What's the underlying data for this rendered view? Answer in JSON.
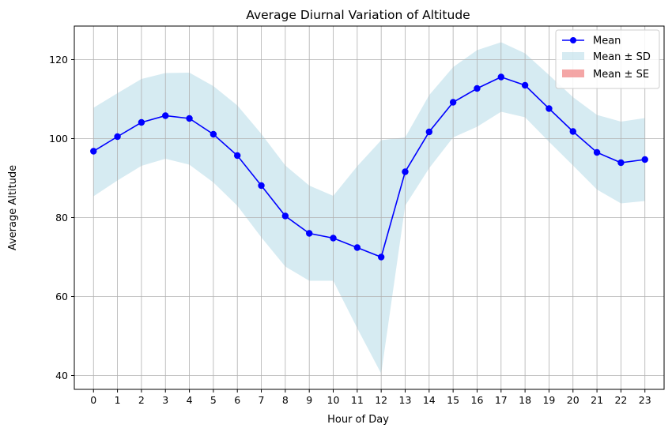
{
  "chart_data": {
    "type": "line",
    "title": "Average Diurnal Variation of Altitude",
    "xlabel": "Hour of Day",
    "ylabel": "Average Altitude",
    "x": [
      0,
      1,
      2,
      3,
      4,
      5,
      6,
      7,
      8,
      9,
      10,
      11,
      12,
      13,
      14,
      15,
      16,
      17,
      18,
      19,
      20,
      21,
      22,
      23
    ],
    "xticks": [
      "0",
      "1",
      "2",
      "3",
      "4",
      "5",
      "6",
      "7",
      "8",
      "9",
      "10",
      "11",
      "12",
      "13",
      "14",
      "15",
      "16",
      "17",
      "18",
      "19",
      "20",
      "21",
      "22",
      "23"
    ],
    "yticks": [
      "40",
      "60",
      "80",
      "100",
      "120"
    ],
    "xlim": [
      -0.8,
      23.8
    ],
    "ylim": [
      36.5,
      128.5
    ],
    "grid": true,
    "legend_position": "top-right",
    "series": [
      {
        "name": "Mean",
        "kind": "line-markers",
        "color": "#0000ff",
        "values": [
          96.8,
          100.5,
          104.1,
          105.8,
          105.1,
          101.1,
          95.7,
          88.1,
          80.4,
          76.0,
          74.8,
          72.4,
          70.0,
          91.6,
          101.7,
          109.2,
          112.7,
          115.6,
          113.5,
          107.6,
          101.8,
          96.5,
          93.9,
          94.7
        ]
      },
      {
        "name": "Mean ± SD",
        "kind": "band",
        "color": "#add8e6",
        "lower": [
          85.4,
          89.4,
          93.1,
          94.9,
          93.4,
          88.9,
          83.0,
          75.0,
          67.6,
          64.0,
          64.0,
          52.0,
          40.5,
          83.0,
          92.5,
          100.3,
          103.0,
          106.8,
          105.4,
          99.2,
          93.2,
          87.1,
          83.6,
          84.2
        ],
        "upper": [
          107.8,
          111.5,
          115.1,
          116.6,
          116.7,
          113.3,
          108.4,
          101.2,
          93.2,
          88.1,
          85.5,
          93.0,
          99.6,
          100.3,
          111.0,
          118.1,
          122.4,
          124.4,
          121.6,
          116.1,
          110.5,
          106.0,
          104.3,
          105.2
        ]
      },
      {
        "name": "Mean ± SE",
        "kind": "band",
        "color": "#f08080",
        "lower": [],
        "upper": []
      }
    ]
  }
}
